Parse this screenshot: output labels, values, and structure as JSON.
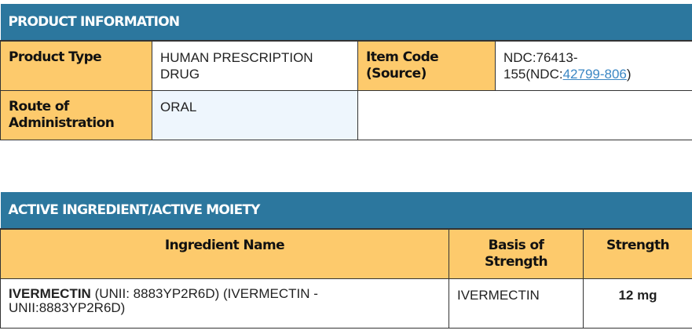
{
  "product_info": {
    "title": "PRODUCT INFORMATION",
    "product_type_label": "Product Type",
    "product_type": "HUMAN PRESCRIPTION DRUG",
    "item_code_label": "Item Code (Source)",
    "item_code_prefix": "NDC:76413-155(NDC:",
    "item_code_link": "42799-806",
    "item_code_suffix": ")",
    "route_label": "Route of Administration",
    "route": "ORAL"
  },
  "active": {
    "title": "ACTIVE INGREDIENT/ACTIVE MOIETY",
    "headers": [
      "Ingredient Name",
      "Basis of Strength",
      "Strength"
    ],
    "rows": [
      {
        "name_bold": "IVERMECTIN",
        "name_rest": " (UNII: 8883YP2R6D) (IVERMECTIN - UNII:8883YP2R6D)",
        "basis": "IVERMECTIN",
        "strength": "12 mg"
      }
    ]
  }
}
